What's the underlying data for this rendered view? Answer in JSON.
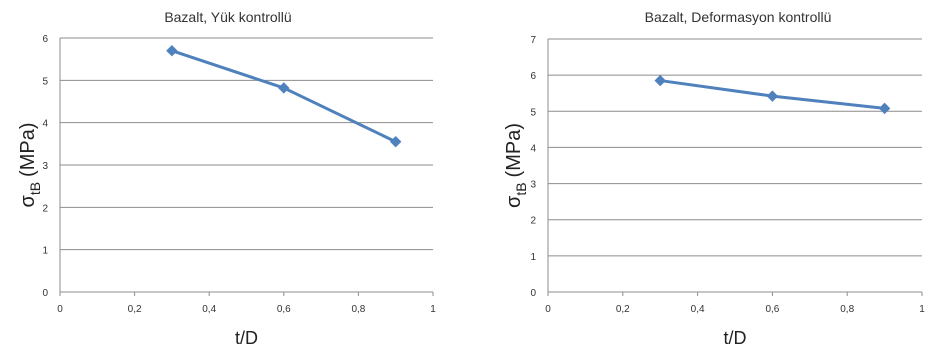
{
  "chart_data": [
    {
      "type": "line",
      "title": "Bazalt, Yük kontrollü",
      "xlabel": "t/D",
      "ylabel": "σ",
      "ylabel_sub": "tB",
      "ylabel_unit": "(MPa)",
      "xlim": [
        0,
        1
      ],
      "ylim": [
        0,
        6
      ],
      "xticks": [
        "0",
        "0,2",
        "0,4",
        "0,6",
        "0,8",
        "1"
      ],
      "yticks": [
        "0",
        "1",
        "2",
        "3",
        "4",
        "5",
        "6"
      ],
      "grid": "horizontal",
      "color": "#4f81bd",
      "series": [
        {
          "x": [
            0.3,
            0.6,
            0.9
          ],
          "values": [
            5.7,
            4.82,
            3.55
          ]
        }
      ]
    },
    {
      "type": "line",
      "title": "Bazalt, Deformasyon kontrollü",
      "xlabel": "t/D",
      "ylabel": "σ",
      "ylabel_sub": "tB",
      "ylabel_unit": "(MPa)",
      "xlim": [
        0,
        1
      ],
      "ylim": [
        0,
        7
      ],
      "xticks": [
        "0",
        "0,2",
        "0,4",
        "0,6",
        "0,8",
        "1"
      ],
      "yticks": [
        "0",
        "1",
        "2",
        "3",
        "4",
        "5",
        "6",
        "7"
      ],
      "grid": "horizontal",
      "color": "#4f81bd",
      "series": [
        {
          "x": [
            0.3,
            0.6,
            0.9
          ],
          "values": [
            5.85,
            5.42,
            5.08
          ]
        }
      ]
    }
  ]
}
